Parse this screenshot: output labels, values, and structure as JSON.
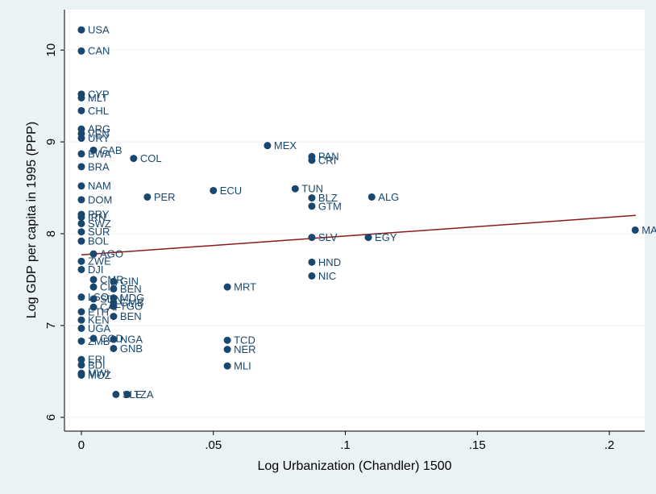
{
  "chart_data": {
    "type": "scatter",
    "x_label": "Log Urbanization (Chandler) 1500",
    "y_label": "Log GDP per capita in 1995 (PPP)",
    "color": "#1a476f",
    "x": [
      0,
      0,
      0,
      0,
      0,
      0,
      0,
      0,
      0.0046,
      0,
      0,
      0.0198,
      0.0705,
      0.0873,
      0.0873,
      0,
      0,
      0.025,
      0.05,
      0.081,
      0.0873,
      0.0873,
      0.11,
      0,
      0,
      0,
      0,
      0,
      0.0873,
      0.1087,
      0.2098,
      0.0046,
      0,
      0,
      0.0873,
      0.0873,
      0.0553,
      0.0046,
      0.0122,
      0.0046,
      0.0122,
      0,
      0.0046,
      0.0122,
      0.0122,
      0.0046,
      0.0122,
      0,
      0.0122,
      0,
      0,
      0,
      0.0046,
      0.0122,
      0.0122,
      0.0553,
      0.0553,
      0.0553,
      0,
      0,
      0,
      0,
      0.0131,
      0.0174
    ],
    "values": [
      10.22,
      9.99,
      9.52,
      9.48,
      9.34,
      9.14,
      9.09,
      9.04,
      8.91,
      8.87,
      8.73,
      8.82,
      8.96,
      8.84,
      8.8,
      8.52,
      8.37,
      8.4,
      8.47,
      8.49,
      8.39,
      8.3,
      8.4,
      8.21,
      8.18,
      8.11,
      8.02,
      7.92,
      7.96,
      7.96,
      8.04,
      7.78,
      7.7,
      7.61,
      7.69,
      7.54,
      7.42,
      7.5,
      7.48,
      7.42,
      7.4,
      7.31,
      7.29,
      7.3,
      7.25,
      7.2,
      7.21,
      7.15,
      7.1,
      7.06,
      6.97,
      6.83,
      6.86,
      6.85,
      6.75,
      6.84,
      6.74,
      6.56,
      6.63,
      6.57,
      6.48,
      6.46,
      6.25,
      6.25
    ],
    "point_labels": [
      "USA",
      "CAN",
      "CYP",
      "MLT",
      "CHL",
      "ARG",
      "VEN",
      "URY",
      "GAB",
      "BWA",
      "BRA",
      "COL",
      "MEX",
      "PAN",
      "CRI",
      "NAM",
      "DOM",
      "PER",
      "ECU",
      "TUN",
      "BLZ",
      "GTM",
      "ALG",
      "PRY",
      "IRN",
      "SWZ",
      "SUR",
      "BOL",
      "SLV",
      "EGY",
      "MAR",
      "AGO",
      "ZWE",
      "DJI",
      "HND",
      "NIC",
      "MRT",
      "CMR",
      "GIN",
      "CIV",
      "BEN",
      "LSO",
      "SDN",
      "MDG",
      "GMB",
      "CAF",
      "TGO",
      "ETH",
      "BEN",
      "KEN",
      "UGA",
      "ZMB",
      "COD",
      "NGA",
      "GNB",
      "TCD",
      "NER",
      "MLI",
      "ERI",
      "BDI",
      "MWI",
      "MOZ",
      "SLE",
      "TZA"
    ],
    "fit_line": {
      "x": [
        0,
        0.21
      ],
      "values": [
        7.77,
        8.2
      ],
      "color": "#8b1a1a"
    },
    "xlim": [
      -0.0064,
      0.2134
    ],
    "ylim": [
      5.85,
      10.44
    ],
    "xticks": [
      0,
      {
        "value": 0.05,
        "label": ".05"
      },
      {
        "value": 0.1,
        "label": ".1"
      },
      {
        "value": 0.15,
        "label": ".15"
      },
      {
        "value": 0.2,
        "label": ".2"
      }
    ],
    "yticks": [
      6,
      7,
      8,
      9,
      10
    ],
    "grid": true
  }
}
